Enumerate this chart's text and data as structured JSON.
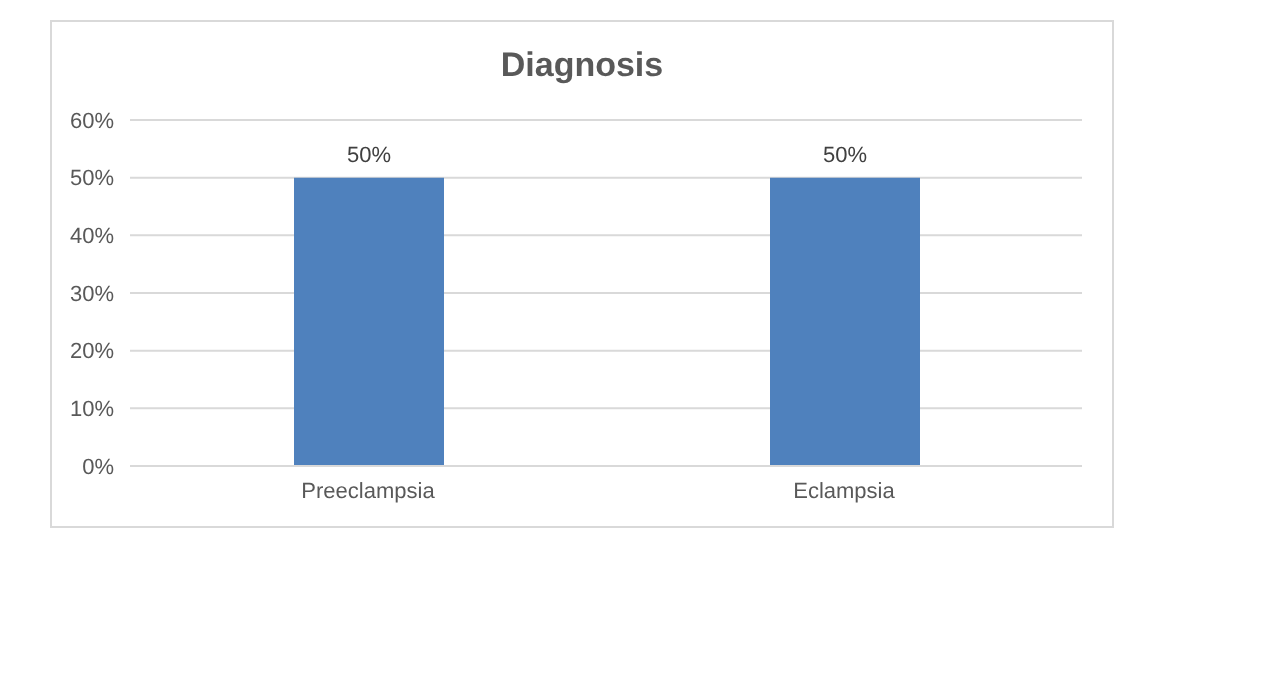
{
  "chart_data": {
    "type": "bar",
    "title": "Diagnosis",
    "categories": [
      "Preeclampsia",
      "Eclampsia"
    ],
    "values": [
      50,
      50
    ],
    "color": "#4f81bd",
    "value_labels": [
      "50%",
      "50%"
    ],
    "ylim": [
      0,
      60
    ],
    "yticks": [
      {
        "value": 0,
        "label": "0%"
      },
      {
        "value": 10,
        "label": "10%"
      },
      {
        "value": 20,
        "label": "20%"
      },
      {
        "value": 30,
        "label": "30%"
      },
      {
        "value": 40,
        "label": "40%"
      },
      {
        "value": 50,
        "label": "50%"
      },
      {
        "value": 60,
        "label": "60%"
      }
    ],
    "grid": "y",
    "legend": false
  }
}
